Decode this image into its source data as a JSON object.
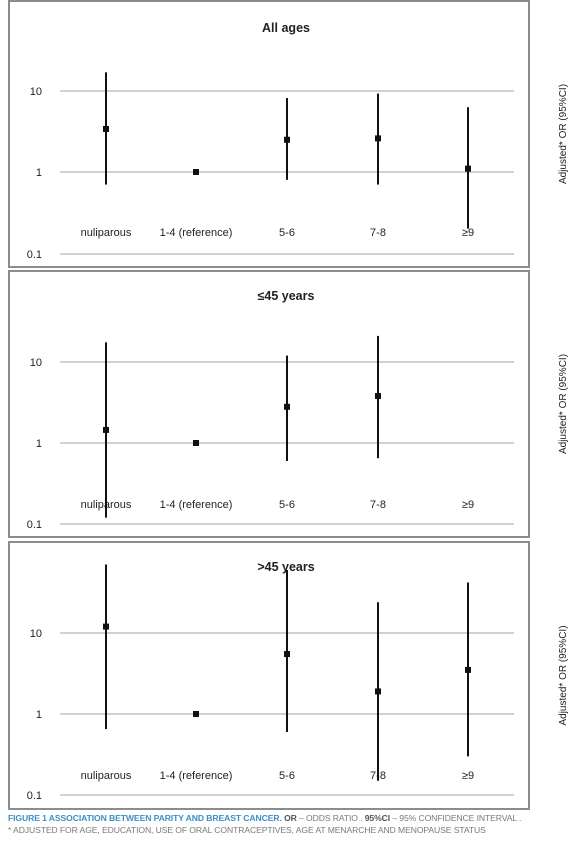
{
  "chart_data": [
    {
      "type": "scatter",
      "title": "All ages",
      "ylabel": "Adjusted* OR (95%CI)",
      "yscale": "log",
      "ylim": [
        0.1,
        20
      ],
      "yticks": [
        "10",
        "1",
        "0.1"
      ],
      "categories": [
        "nuliparous",
        "1-4 (reference)",
        "5-6",
        "7-8",
        "≥9"
      ],
      "points": [
        {
          "category": "nuliparous",
          "or": 3.4,
          "ci_low": 0.7,
          "ci_high": 17
        },
        {
          "category": "1-4 (reference)",
          "or": 1.0
        },
        {
          "category": "5-6",
          "or": 2.5,
          "ci_low": 0.8,
          "ci_high": 8.2
        },
        {
          "category": "7-8",
          "or": 2.6,
          "ci_low": 0.7,
          "ci_high": 9.3
        },
        {
          "category": "≥9",
          "or": 1.1,
          "ci_low": 0.2,
          "ci_high": 6.3
        }
      ]
    },
    {
      "type": "scatter",
      "title": "≤45 years",
      "ylabel": "Adjusted* OR (95%CI)",
      "yscale": "log",
      "ylim": [
        0.1,
        20
      ],
      "yticks": [
        "10",
        "1",
        "0.1"
      ],
      "categories": [
        "nuliparous",
        "1-4 (reference)",
        "5-6",
        "7-8",
        "≥9"
      ],
      "points": [
        {
          "category": "nuliparous",
          "or": 1.45,
          "ci_low": 0.12,
          "ci_high": 17.5
        },
        {
          "category": "1-4 (reference)",
          "or": 1.0
        },
        {
          "category": "5-6",
          "or": 2.8,
          "ci_low": 0.6,
          "ci_high": 12
        },
        {
          "category": "7-8",
          "or": 3.8,
          "ci_low": 0.65,
          "ci_high": 21
        }
      ]
    },
    {
      "type": "scatter",
      "title": ">45 years",
      "ylabel": "Adjusted* OR (95%CI)",
      "yscale": "log",
      "ylim": [
        0.1,
        70
      ],
      "yticks": [
        "10",
        "1",
        "0.1"
      ],
      "categories": [
        "nuliparous",
        "1-4 (reference)",
        "5-6",
        "7-8",
        "≥9"
      ],
      "points": [
        {
          "category": "nuliparous",
          "or": 12,
          "ci_low": 0.65,
          "ci_high": 70
        },
        {
          "category": "1-4 (reference)",
          "or": 1.0
        },
        {
          "category": "5-6",
          "or": 5.5,
          "ci_low": 0.6,
          "ci_high": 60
        },
        {
          "category": "7-8",
          "or": 1.9,
          "ci_low": 0.15,
          "ci_high": 24
        },
        {
          "category": "≥9",
          "or": 3.5,
          "ci_low": 0.3,
          "ci_high": 42
        }
      ]
    }
  ],
  "caption": {
    "label": "FIGURE 1 ASSOCIATION BETWEEN PARITY AND BREAST CANCER.",
    "or_abbr": "OR",
    "or_text": " – ODDS RATIO . ",
    "ci_abbr": "95%CI",
    "ci_text": " – 95% CONFIDENCE INTERVAL .",
    "footnote": "* ADJUSTED FOR AGE, EDUCATION, USE OF ORAL CONTRACEPTIVES, AGE AT MENARCHE AND MENOPAUSE STATUS"
  }
}
